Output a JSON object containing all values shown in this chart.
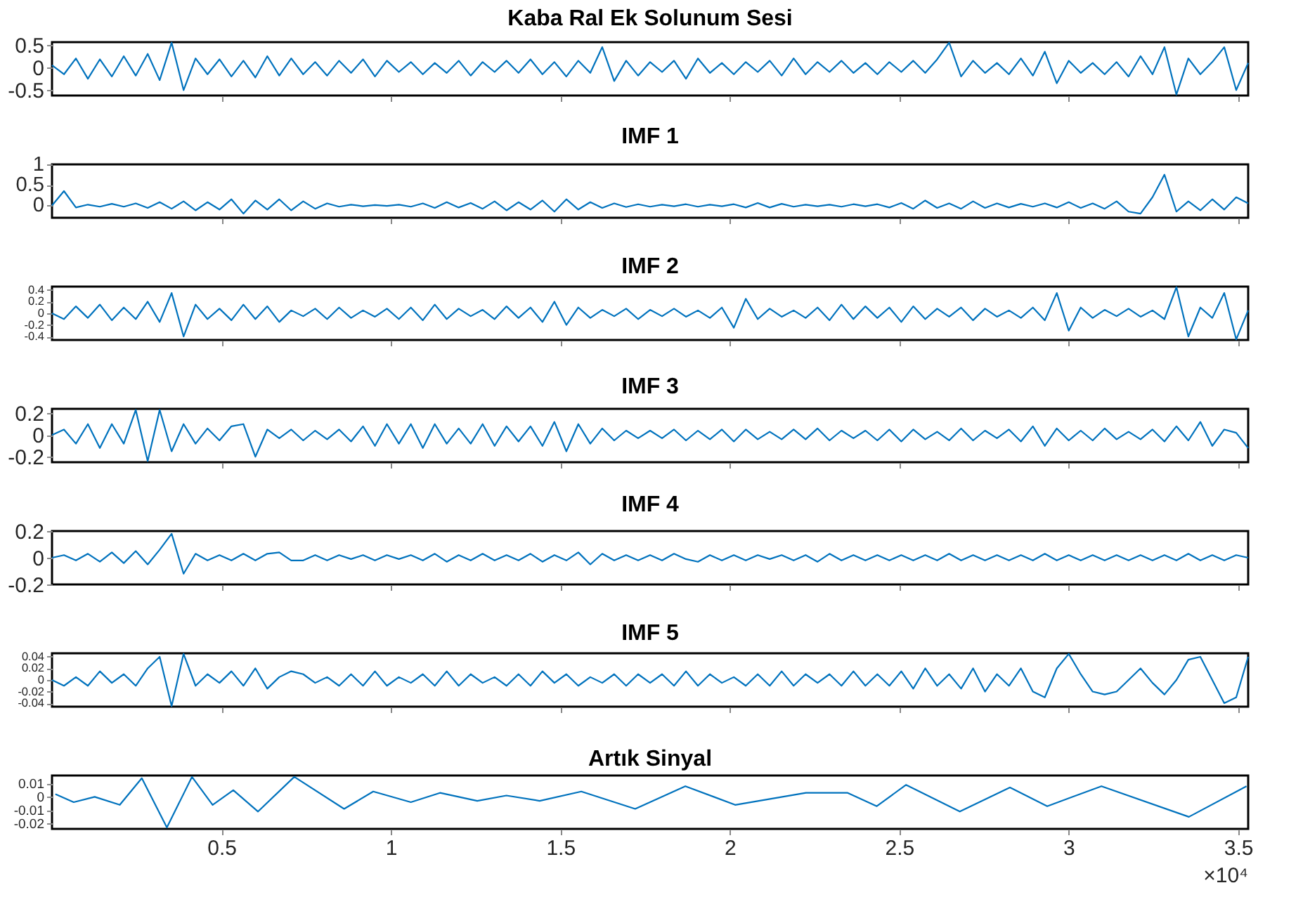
{
  "chart_data": [
    {
      "type": "line",
      "title": "Kaba Ral Ek Solunum Sesi",
      "color": "#0072bd",
      "tick_labels": "y",
      "xlim": [
        0,
        3.53
      ],
      "xticks": [
        0.5,
        1,
        1.5,
        2,
        2.5,
        3,
        3.5
      ],
      "ylim": [
        -0.62,
        0.56
      ],
      "yticks": [
        -0.5,
        0,
        0.5
      ],
      "x": [
        0,
        0.0353,
        0.0706,
        0.1059,
        0.1412,
        0.1765,
        0.2118,
        0.2471,
        0.2824,
        0.3177,
        0.353,
        0.3883,
        0.4236,
        0.4589,
        0.4942,
        0.5295,
        0.5648,
        0.6001,
        0.6354,
        0.6707,
        0.706,
        0.7413,
        0.7766,
        0.8119,
        0.8472,
        0.8825,
        0.9178,
        0.9531,
        0.9884,
        1.0237,
        1.059,
        1.0943,
        1.1296,
        1.1649,
        1.2002,
        1.2355,
        1.2708,
        1.3061,
        1.3414,
        1.3767,
        1.412,
        1.4473,
        1.4826,
        1.5179,
        1.5532,
        1.5885,
        1.6238,
        1.6591,
        1.6944,
        1.7297,
        1.765,
        1.8003,
        1.8356,
        1.8709,
        1.9062,
        1.9415,
        1.9768,
        2.0121,
        2.0474,
        2.0827,
        2.118,
        2.1533,
        2.1886,
        2.2239,
        2.2592,
        2.2945,
        2.3298,
        2.3651,
        2.4004,
        2.4357,
        2.471,
        2.5063,
        2.5416,
        2.5769,
        2.6122,
        2.6475,
        2.6828,
        2.7181,
        2.7534,
        2.7887,
        2.824,
        2.8593,
        2.8946,
        2.9299,
        2.9652,
        3.0005,
        3.0358,
        3.0711,
        3.1064,
        3.1417,
        3.177,
        3.2123,
        3.2476,
        3.2829,
        3.3182,
        3.3535,
        3.3888,
        3.4241,
        3.4594,
        3.4947,
        3.53
      ],
      "values": [
        0.05,
        -0.15,
        0.2,
        -0.25,
        0.18,
        -0.2,
        0.25,
        -0.18,
        0.3,
        -0.28,
        0.55,
        -0.5,
        0.2,
        -0.15,
        0.18,
        -0.2,
        0.15,
        -0.22,
        0.25,
        -0.18,
        0.2,
        -0.15,
        0.12,
        -0.18,
        0.15,
        -0.12,
        0.18,
        -0.2,
        0.15,
        -0.1,
        0.12,
        -0.15,
        0.1,
        -0.12,
        0.15,
        -0.18,
        0.12,
        -0.1,
        0.15,
        -0.12,
        0.18,
        -0.15,
        0.12,
        -0.2,
        0.15,
        -0.12,
        0.45,
        -0.3,
        0.15,
        -0.18,
        0.12,
        -0.1,
        0.15,
        -0.25,
        0.2,
        -0.12,
        0.1,
        -0.15,
        0.12,
        -0.1,
        0.15,
        -0.18,
        0.2,
        -0.15,
        0.12,
        -0.1,
        0.15,
        -0.12,
        0.1,
        -0.15,
        0.12,
        -0.1,
        0.15,
        -0.12,
        0.18,
        0.55,
        -0.2,
        0.15,
        -0.12,
        0.1,
        -0.15,
        0.2,
        -0.18,
        0.35,
        -0.35,
        0.15,
        -0.12,
        0.1,
        -0.15,
        0.12,
        -0.2,
        0.25,
        -0.15,
        0.45,
        -0.6,
        0.2,
        -0.15,
        0.12,
        0.45,
        -0.5,
        0.1
      ]
    },
    {
      "type": "line",
      "title": "IMF 1",
      "color": "#0072bd",
      "tick_labels": "y",
      "xlim": [
        0,
        3.53
      ],
      "xticks": [
        0.5,
        1,
        1.5,
        2,
        2.5,
        3,
        3.5
      ],
      "ylim": [
        -0.3,
        1
      ],
      "yticks": [
        0,
        0.5,
        1
      ],
      "x": [
        0,
        0.0353,
        0.0706,
        0.1059,
        0.1412,
        0.1765,
        0.2118,
        0.2471,
        0.2824,
        0.3177,
        0.353,
        0.3883,
        0.4236,
        0.4589,
        0.4942,
        0.5295,
        0.5648,
        0.6001,
        0.6354,
        0.6707,
        0.706,
        0.7413,
        0.7766,
        0.8119,
        0.8472,
        0.8825,
        0.9178,
        0.9531,
        0.9884,
        1.0237,
        1.059,
        1.0943,
        1.1296,
        1.1649,
        1.2002,
        1.2355,
        1.2708,
        1.3061,
        1.3414,
        1.3767,
        1.412,
        1.4473,
        1.4826,
        1.5179,
        1.5532,
        1.5885,
        1.6238,
        1.6591,
        1.6944,
        1.7297,
        1.765,
        1.8003,
        1.8356,
        1.8709,
        1.9062,
        1.9415,
        1.9768,
        2.0121,
        2.0474,
        2.0827,
        2.118,
        2.1533,
        2.1886,
        2.2239,
        2.2592,
        2.2945,
        2.3298,
        2.3651,
        2.4004,
        2.4357,
        2.471,
        2.5063,
        2.5416,
        2.5769,
        2.6122,
        2.6475,
        2.6828,
        2.7181,
        2.7534,
        2.7887,
        2.824,
        2.8593,
        2.8946,
        2.9299,
        2.9652,
        3.0005,
        3.0358,
        3.0711,
        3.1064,
        3.1417,
        3.177,
        3.2123,
        3.2476,
        3.2829,
        3.3182,
        3.3535,
        3.3888,
        3.4241,
        3.4594,
        3.4947,
        3.53
      ],
      "values": [
        0,
        0.35,
        -0.05,
        0.02,
        -0.03,
        0.04,
        -0.03,
        0.05,
        -0.06,
        0.08,
        -0.08,
        0.1,
        -0.12,
        0.08,
        -0.1,
        0.15,
        -0.2,
        0.12,
        -0.1,
        0.15,
        -0.12,
        0.1,
        -0.08,
        0.05,
        -0.03,
        0.02,
        -0.02,
        0.01,
        -0.01,
        0.02,
        -0.03,
        0.05,
        -0.06,
        0.08,
        -0.05,
        0.06,
        -0.08,
        0.1,
        -0.12,
        0.08,
        -0.1,
        0.12,
        -0.15,
        0.15,
        -0.1,
        0.08,
        -0.06,
        0.05,
        -0.04,
        0.03,
        -0.03,
        0.02,
        -0.02,
        0.03,
        -0.03,
        0.02,
        -0.02,
        0.03,
        -0.05,
        0.06,
        -0.05,
        0.04,
        -0.03,
        0.02,
        -0.02,
        0.02,
        -0.03,
        0.03,
        -0.02,
        0.03,
        -0.05,
        0.06,
        -0.08,
        0.12,
        -0.06,
        0.05,
        -0.08,
        0.1,
        -0.06,
        0.05,
        -0.05,
        0.04,
        -0.03,
        0.05,
        -0.05,
        0.08,
        -0.06,
        0.05,
        -0.08,
        0.1,
        -0.15,
        -0.2,
        0.2,
        0.75,
        -0.15,
        0.1,
        -0.12,
        0.15,
        -0.1,
        0.2,
        0.05
      ]
    },
    {
      "type": "line",
      "title": "IMF 2",
      "color": "#0072bd",
      "tick_labels": "y",
      "xlim": [
        0,
        3.53
      ],
      "xticks": [
        0.5,
        1,
        1.5,
        2,
        2.5,
        3,
        3.5
      ],
      "ylim": [
        -0.46,
        0.46
      ],
      "yticks": [
        -0.4,
        -0.2,
        0,
        0.2,
        0.4
      ],
      "x": [
        0,
        0.0353,
        0.0706,
        0.1059,
        0.1412,
        0.1765,
        0.2118,
        0.2471,
        0.2824,
        0.3177,
        0.353,
        0.3883,
        0.4236,
        0.4589,
        0.4942,
        0.5295,
        0.5648,
        0.6001,
        0.6354,
        0.6707,
        0.706,
        0.7413,
        0.7766,
        0.8119,
        0.8472,
        0.8825,
        0.9178,
        0.9531,
        0.9884,
        1.0237,
        1.059,
        1.0943,
        1.1296,
        1.1649,
        1.2002,
        1.2355,
        1.2708,
        1.3061,
        1.3414,
        1.3767,
        1.412,
        1.4473,
        1.4826,
        1.5179,
        1.5532,
        1.5885,
        1.6238,
        1.6591,
        1.6944,
        1.7297,
        1.765,
        1.8003,
        1.8356,
        1.8709,
        1.9062,
        1.9415,
        1.9768,
        2.0121,
        2.0474,
        2.0827,
        2.118,
        2.1533,
        2.1886,
        2.2239,
        2.2592,
        2.2945,
        2.3298,
        2.3651,
        2.4004,
        2.4357,
        2.471,
        2.5063,
        2.5416,
        2.5769,
        2.6122,
        2.6475,
        2.6828,
        2.7181,
        2.7534,
        2.7887,
        2.824,
        2.8593,
        2.8946,
        2.9299,
        2.9652,
        3.0005,
        3.0358,
        3.0711,
        3.1064,
        3.1417,
        3.177,
        3.2123,
        3.2476,
        3.2829,
        3.3182,
        3.3535,
        3.3888,
        3.4241,
        3.4594,
        3.4947,
        3.53
      ],
      "values": [
        0,
        -0.1,
        0.12,
        -0.08,
        0.15,
        -0.12,
        0.1,
        -0.1,
        0.2,
        -0.15,
        0.35,
        -0.4,
        0.15,
        -0.1,
        0.08,
        -0.12,
        0.15,
        -0.1,
        0.12,
        -0.15,
        0.05,
        -0.05,
        0.08,
        -0.1,
        0.1,
        -0.08,
        0.05,
        -0.06,
        0.08,
        -0.1,
        0.1,
        -0.12,
        0.15,
        -0.1,
        0.08,
        -0.05,
        0.06,
        -0.1,
        0.12,
        -0.08,
        0.1,
        -0.15,
        0.2,
        -0.2,
        0.1,
        -0.08,
        0.06,
        -0.05,
        0.08,
        -0.1,
        0.06,
        -0.05,
        0.08,
        -0.06,
        0.05,
        -0.08,
        0.1,
        -0.25,
        0.25,
        -0.1,
        0.08,
        -0.06,
        0.05,
        -0.08,
        0.1,
        -0.12,
        0.15,
        -0.1,
        0.12,
        -0.08,
        0.1,
        -0.15,
        0.12,
        -0.1,
        0.08,
        -0.06,
        0.1,
        -0.12,
        0.08,
        -0.06,
        0.05,
        -0.08,
        0.1,
        -0.12,
        0.35,
        -0.3,
        0.1,
        -0.08,
        0.06,
        -0.05,
        0.08,
        -0.06,
        0.05,
        -0.1,
        0.45,
        -0.4,
        0.1,
        -0.08,
        0.35,
        -0.45,
        0.05
      ]
    },
    {
      "type": "line",
      "title": "IMF 3",
      "color": "#0072bd",
      "tick_labels": "y",
      "xlim": [
        0,
        3.53
      ],
      "xticks": [
        0.5,
        1,
        1.5,
        2,
        2.5,
        3,
        3.5
      ],
      "ylim": [
        -0.25,
        0.24
      ],
      "yticks": [
        -0.2,
        0,
        0.2
      ],
      "x": [
        0,
        0.0353,
        0.0706,
        0.1059,
        0.1412,
        0.1765,
        0.2118,
        0.2471,
        0.2824,
        0.3177,
        0.353,
        0.3883,
        0.4236,
        0.4589,
        0.4942,
        0.5295,
        0.5648,
        0.6001,
        0.6354,
        0.6707,
        0.706,
        0.7413,
        0.7766,
        0.8119,
        0.8472,
        0.8825,
        0.9178,
        0.9531,
        0.9884,
        1.0237,
        1.059,
        1.0943,
        1.1296,
        1.1649,
        1.2002,
        1.2355,
        1.2708,
        1.3061,
        1.3414,
        1.3767,
        1.412,
        1.4473,
        1.4826,
        1.5179,
        1.5532,
        1.5885,
        1.6238,
        1.6591,
        1.6944,
        1.7297,
        1.765,
        1.8003,
        1.8356,
        1.8709,
        1.9062,
        1.9415,
        1.9768,
        2.0121,
        2.0474,
        2.0827,
        2.118,
        2.1533,
        2.1886,
        2.2239,
        2.2592,
        2.2945,
        2.3298,
        2.3651,
        2.4004,
        2.4357,
        2.471,
        2.5063,
        2.5416,
        2.5769,
        2.6122,
        2.6475,
        2.6828,
        2.7181,
        2.7534,
        2.7887,
        2.824,
        2.8593,
        2.8946,
        2.9299,
        2.9652,
        3.0005,
        3.0358,
        3.0711,
        3.1064,
        3.1417,
        3.177,
        3.2123,
        3.2476,
        3.2829,
        3.3182,
        3.3535,
        3.3888,
        3.4241,
        3.4594,
        3.4947,
        3.53
      ],
      "values": [
        0,
        0.05,
        -0.08,
        0.1,
        -0.12,
        0.1,
        -0.08,
        0.23,
        -0.24,
        0.23,
        -0.15,
        0.1,
        -0.08,
        0.06,
        -0.05,
        0.08,
        0.1,
        -0.2,
        0.05,
        -0.03,
        0.05,
        -0.05,
        0.04,
        -0.04,
        0.05,
        -0.06,
        0.08,
        -0.1,
        0.1,
        -0.08,
        0.1,
        -0.12,
        0.1,
        -0.08,
        0.06,
        -0.08,
        0.1,
        -0.1,
        0.08,
        -0.06,
        0.08,
        -0.1,
        0.12,
        -0.15,
        0.1,
        -0.08,
        0.06,
        -0.05,
        0.04,
        -0.03,
        0.04,
        -0.03,
        0.05,
        -0.05,
        0.04,
        -0.04,
        0.05,
        -0.06,
        0.05,
        -0.04,
        0.03,
        -0.04,
        0.05,
        -0.04,
        0.06,
        -0.05,
        0.04,
        -0.03,
        0.04,
        -0.05,
        0.05,
        -0.06,
        0.05,
        -0.04,
        0.03,
        -0.05,
        0.06,
        -0.05,
        0.04,
        -0.03,
        0.05,
        -0.06,
        0.08,
        -0.1,
        0.06,
        -0.05,
        0.04,
        -0.05,
        0.06,
        -0.04,
        0.03,
        -0.04,
        0.05,
        -0.06,
        0.08,
        -0.05,
        0.12,
        -0.1,
        0.05,
        0.02,
        -0.12
      ]
    },
    {
      "type": "line",
      "title": "IMF 4",
      "color": "#0072bd",
      "tick_labels": "y",
      "xlim": [
        0,
        3.53
      ],
      "xticks": [
        0.5,
        1,
        1.5,
        2,
        2.5,
        3,
        3.5
      ],
      "ylim": [
        -0.2,
        0.2
      ],
      "yticks": [
        -0.2,
        0,
        0.2
      ],
      "x": [
        0,
        0.0353,
        0.0706,
        0.1059,
        0.1412,
        0.1765,
        0.2118,
        0.2471,
        0.2824,
        0.3177,
        0.353,
        0.3883,
        0.4236,
        0.4589,
        0.4942,
        0.5295,
        0.5648,
        0.6001,
        0.6354,
        0.6707,
        0.706,
        0.7413,
        0.7766,
        0.8119,
        0.8472,
        0.8825,
        0.9178,
        0.9531,
        0.9884,
        1.0237,
        1.059,
        1.0943,
        1.1296,
        1.1649,
        1.2002,
        1.2355,
        1.2708,
        1.3061,
        1.3414,
        1.3767,
        1.412,
        1.4473,
        1.4826,
        1.5179,
        1.5532,
        1.5885,
        1.6238,
        1.6591,
        1.6944,
        1.7297,
        1.765,
        1.8003,
        1.8356,
        1.8709,
        1.9062,
        1.9415,
        1.9768,
        2.0121,
        2.0474,
        2.0827,
        2.118,
        2.1533,
        2.1886,
        2.2239,
        2.2592,
        2.2945,
        2.3298,
        2.3651,
        2.4004,
        2.4357,
        2.471,
        2.5063,
        2.5416,
        2.5769,
        2.6122,
        2.6475,
        2.6828,
        2.7181,
        2.7534,
        2.7887,
        2.824,
        2.8593,
        2.8946,
        2.9299,
        2.9652,
        3.0005,
        3.0358,
        3.0711,
        3.1064,
        3.1417,
        3.177,
        3.2123,
        3.2476,
        3.2829,
        3.3182,
        3.3535,
        3.3888,
        3.4241,
        3.4594,
        3.4947,
        3.53
      ],
      "values": [
        0,
        0.02,
        -0.02,
        0.03,
        -0.03,
        0.04,
        -0.04,
        0.05,
        -0.05,
        0.06,
        0.18,
        -0.12,
        0.03,
        -0.02,
        0.02,
        -0.02,
        0.03,
        -0.02,
        0.03,
        0.04,
        -0.02,
        -0.02,
        0.02,
        -0.02,
        0.02,
        -0.01,
        0.02,
        -0.02,
        0.02,
        -0.01,
        0.02,
        -0.02,
        0.03,
        -0.03,
        0.02,
        -0.02,
        0.03,
        -0.02,
        0.02,
        -0.02,
        0.03,
        -0.03,
        0.02,
        -0.02,
        0.04,
        -0.05,
        0.03,
        -0.02,
        0.02,
        -0.02,
        0.02,
        -0.02,
        0.03,
        -0.01,
        -0.03,
        0.02,
        -0.02,
        0.02,
        -0.02,
        0.02,
        -0.01,
        0.02,
        -0.02,
        0.02,
        -0.03,
        0.03,
        -0.02,
        0.02,
        -0.02,
        0.02,
        -0.02,
        0.02,
        -0.02,
        0.02,
        -0.02,
        0.03,
        -0.02,
        0.02,
        -0.02,
        0.02,
        -0.02,
        0.02,
        -0.02,
        0.03,
        -0.02,
        0.02,
        -0.02,
        0.02,
        -0.02,
        0.02,
        -0.02,
        0.02,
        -0.02,
        0.02,
        -0.02,
        0.03,
        -0.02,
        0.02,
        -0.02,
        0.02,
        0
      ]
    },
    {
      "type": "line",
      "title": "IMF 5",
      "color": "#0072bd",
      "tick_labels": "y",
      "xlim": [
        0,
        3.53
      ],
      "xticks": [
        0.5,
        1,
        1.5,
        2,
        2.5,
        3,
        3.5
      ],
      "ylim": [
        -0.046,
        0.046
      ],
      "yticks": [
        -0.04,
        -0.02,
        0,
        0.02,
        0.04
      ],
      "x": [
        0,
        0.0353,
        0.0706,
        0.1059,
        0.1412,
        0.1765,
        0.2118,
        0.2471,
        0.2824,
        0.3177,
        0.353,
        0.3883,
        0.4236,
        0.4589,
        0.4942,
        0.5295,
        0.5648,
        0.6001,
        0.6354,
        0.6707,
        0.706,
        0.7413,
        0.7766,
        0.8119,
        0.8472,
        0.8825,
        0.9178,
        0.9531,
        0.9884,
        1.0237,
        1.059,
        1.0943,
        1.1296,
        1.1649,
        1.2002,
        1.2355,
        1.2708,
        1.3061,
        1.3414,
        1.3767,
        1.412,
        1.4473,
        1.4826,
        1.5179,
        1.5532,
        1.5885,
        1.6238,
        1.6591,
        1.6944,
        1.7297,
        1.765,
        1.8003,
        1.8356,
        1.8709,
        1.9062,
        1.9415,
        1.9768,
        2.0121,
        2.0474,
        2.0827,
        2.118,
        2.1533,
        2.1886,
        2.2239,
        2.2592,
        2.2945,
        2.3298,
        2.3651,
        2.4004,
        2.4357,
        2.471,
        2.5063,
        2.5416,
        2.5769,
        2.6122,
        2.6475,
        2.6828,
        2.7181,
        2.7534,
        2.7887,
        2.824,
        2.8593,
        2.8946,
        2.9299,
        2.9652,
        3.0005,
        3.0358,
        3.0711,
        3.1064,
        3.1417,
        3.177,
        3.2123,
        3.2476,
        3.2829,
        3.3182,
        3.3535,
        3.3888,
        3.4241,
        3.4594,
        3.4947,
        3.53
      ],
      "values": [
        0,
        -0.01,
        0.005,
        -0.01,
        0.015,
        -0.005,
        0.01,
        -0.01,
        0.02,
        0.04,
        -0.045,
        0.045,
        -0.01,
        0.01,
        -0.005,
        0.015,
        -0.01,
        0.02,
        -0.015,
        0.005,
        0.015,
        0.01,
        -0.005,
        0.005,
        -0.01,
        0.01,
        -0.01,
        0.015,
        -0.01,
        0.005,
        -0.005,
        0.01,
        -0.01,
        0.015,
        -0.01,
        0.01,
        -0.005,
        0.005,
        -0.01,
        0.01,
        -0.01,
        0.015,
        -0.005,
        0.01,
        -0.01,
        0.005,
        -0.005,
        0.01,
        -0.01,
        0.01,
        -0.005,
        0.01,
        -0.01,
        0.015,
        -0.01,
        0.01,
        -0.005,
        0.005,
        -0.01,
        0.01,
        -0.01,
        0.015,
        -0.01,
        0.01,
        -0.005,
        0.01,
        -0.01,
        0.015,
        -0.01,
        0.01,
        -0.01,
        0.015,
        -0.015,
        0.02,
        -0.01,
        0.01,
        -0.015,
        0.02,
        -0.02,
        0.01,
        -0.01,
        0.02,
        -0.02,
        -0.03,
        0.02,
        0.045,
        0.01,
        -0.02,
        -0.025,
        -0.02,
        0.0,
        0.02,
        -0.005,
        -0.025,
        0.0,
        0.035,
        0.04,
        0.0,
        -0.04,
        -0.03,
        0.04
      ]
    },
    {
      "type": "line",
      "title": "Artık Sinyal",
      "color": "#0072bd",
      "xlim": [
        0,
        3.53
      ],
      "ylim": [
        -0.024,
        0.016
      ],
      "yticks": [
        -0.02,
        -0.01,
        0,
        0.01
      ],
      "xticks": [
        0.5,
        1,
        1.5,
        2,
        2.5,
        3,
        3.5
      ],
      "annotations": [
        "×10⁴"
      ],
      "x": [
        0.01,
        0.064,
        0.126,
        0.2,
        0.265,
        0.339,
        0.413,
        0.474,
        0.535,
        0.608,
        0.715,
        0.862,
        0.948,
        1.059,
        1.145,
        1.255,
        1.341,
        1.439,
        1.562,
        1.721,
        1.869,
        2.016,
        2.225,
        2.348,
        2.434,
        2.52,
        2.679,
        2.827,
        2.937,
        3.097,
        3.355,
        3.525
      ],
      "values": [
        0.002,
        -0.004,
        0.0,
        -0.006,
        0.014,
        -0.023,
        0.015,
        -0.006,
        0.005,
        -0.011,
        0.015,
        -0.009,
        0.004,
        -0.004,
        0.003,
        -0.003,
        0.001,
        -0.003,
        0.004,
        -0.009,
        0.008,
        -0.006,
        0.003,
        0.003,
        -0.007,
        0.009,
        -0.011,
        0.007,
        -0.007,
        0.008,
        -0.015,
        0.008
      ]
    }
  ]
}
